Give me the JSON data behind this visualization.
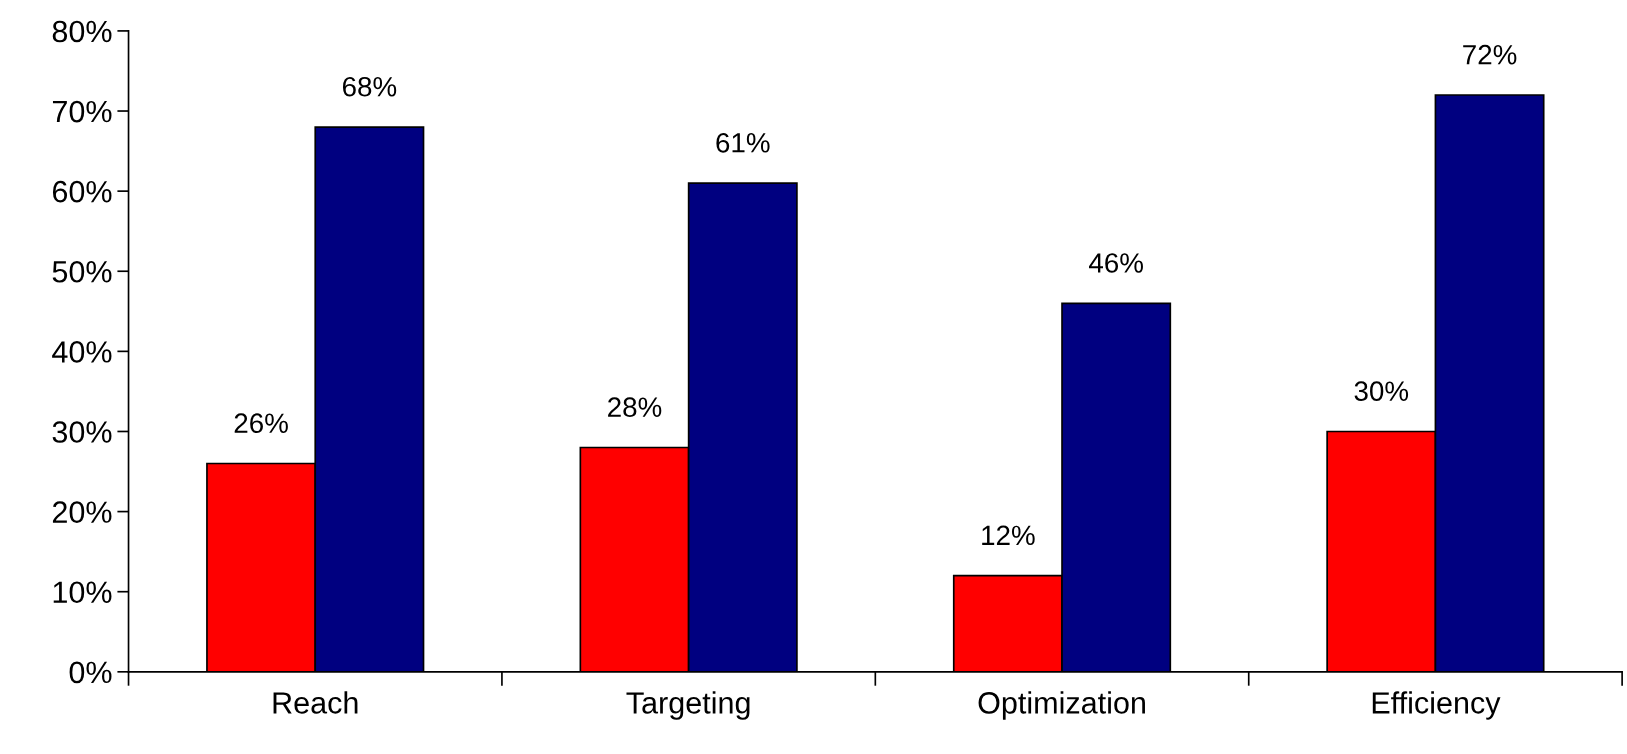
{
  "chart_data": {
    "type": "bar",
    "categories": [
      "Reach",
      "Targeting",
      "Optimization",
      "Efficiency"
    ],
    "series": [
      {
        "color": "#ff0000",
        "values": [
          26,
          28,
          12,
          30
        ],
        "value_labels": [
          "26%",
          "28%",
          "12%",
          "30%"
        ]
      },
      {
        "color": "#000080",
        "values": [
          68,
          61,
          46,
          72
        ],
        "value_labels": [
          "68%",
          "61%",
          "46%",
          "72%"
        ]
      }
    ],
    "ylim": [
      0,
      80
    ],
    "yticks": [
      {
        "value": 0,
        "label": "0%"
      },
      {
        "value": 10,
        "label": "10%"
      },
      {
        "value": 20,
        "label": "20%"
      },
      {
        "value": 30,
        "label": "30%"
      },
      {
        "value": 40,
        "label": "40%"
      },
      {
        "value": 50,
        "label": "50%"
      },
      {
        "value": 60,
        "label": "60%"
      },
      {
        "value": 70,
        "label": "70%"
      },
      {
        "value": 80,
        "label": "80%"
      }
    ],
    "grid": false
  }
}
